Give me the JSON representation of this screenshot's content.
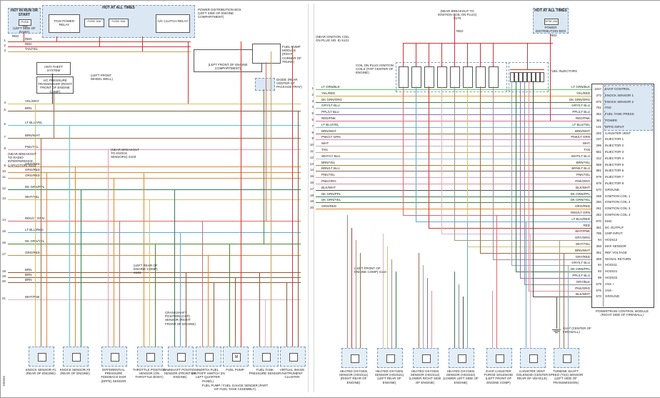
{
  "meta": {
    "doc_number": "100566"
  },
  "colors": {
    "page_bg": "#ffffff",
    "dashed_box_fill": "#dbe8f4",
    "dashed_box_border": "#7a9ab8",
    "line_default": "#333333",
    "red": "#cc3333"
  },
  "left": {
    "hot_run_box": {
      "header": "HOT IN RUN OR START",
      "fuse": "FUSE 20A",
      "caption": "(LEFT SIDE OF DASH)",
      "wire": "RED"
    },
    "power_box": {
      "header": "HOT AT ALL TIMES",
      "items": [
        "PCM POWER RELAY",
        "FUSE 30A",
        "FUSE 30A",
        "A/C CLUTCH RELAY"
      ],
      "caption": "POWER DISTRIBUTION BOX (LEFT SIDE OF ENGINE COMPARTMENT)"
    },
    "mid_boxes": [
      {
        "label": "ANTI-THEFT SYSTEM"
      },
      {
        "label": "A/C PRESSURE TRANSDUCER (RIGHT FRONT OF ENGINE COMP)"
      },
      {
        "label": "(LEFT FRONT OF ENGINE COMPARTMENT)"
      },
      {
        "label": "FUEL PUMP MODULE (RIGHT CORNER OF TRUNK)"
      },
      {
        "label": "DIODE (REAR CENTER OF PACKAGE TRAY)"
      }
    ],
    "annotations": [
      "(NEAR BREAKOUT TO RADIO INTERFERENCE CAPACITOR) S122",
      "(NEAR BREAKOUT TO KNOCK SENSORS) S103",
      "(LEFT REAR OF ENGINE COMP) S101",
      "(LEFT FRONT WHEEL WELL)",
      "CRANKSHAFT POSITION (CKP) SENSOR (RIGHT FRONT OF ENGINE)"
    ],
    "rows": [
      {
        "n": "1",
        "label": "RED",
        "color": "#cc3333"
      },
      {
        "n": "2",
        "label": "RED",
        "color": "#cc3333"
      },
      {
        "n": "3",
        "label": "TAN/YEL",
        "color": "#c8a050"
      },
      {
        "n": "4",
        "label": "YEL/WHT",
        "color": "#cfc26a"
      },
      {
        "n": "5",
        "label": "BRN",
        "color": "#8a5a33"
      },
      {
        "n": "6",
        "label": "LT BLU/YEL",
        "color": "#58c4d4"
      },
      {
        "n": "7",
        "label": "BRN/WHT",
        "color": "#9b6a42"
      },
      {
        "n": "8",
        "label": "PNK/YEL",
        "color": "#e49ab4"
      },
      {
        "n": "9",
        "label": "ORG/RED",
        "color": "#e0862e"
      },
      {
        "n": "10",
        "label": "ORG/RED",
        "color": "#e0862e"
      },
      {
        "n": "11",
        "label": "ORG/RED",
        "color": "#e0862e"
      },
      {
        "n": "12",
        "label": "DK GRN/PPL",
        "color": "#2e7d4f"
      },
      {
        "n": "13",
        "label": "WHT/YEL",
        "color": "#cfc26a"
      },
      {
        "n": "14",
        "label": "RED/LT GRN",
        "color": "#d96a6a"
      },
      {
        "n": "15",
        "label": "LT BLU/RED",
        "color": "#5fa8d8"
      },
      {
        "n": "16",
        "label": "DK GRN/YEL",
        "color": "#47862e"
      },
      {
        "n": "17",
        "label": "ORG/RED",
        "color": "#e0862e"
      },
      {
        "n": "18",
        "label": "BRN",
        "color": "#8a5a33"
      },
      {
        "n": "19",
        "label": "BRN",
        "color": "#8a5a33"
      },
      {
        "n": "20",
        "label": "BRN",
        "color": "#8a5a33"
      },
      {
        "n": "21",
        "label": "WHT/PNK",
        "color": "#dcb4c0"
      }
    ],
    "components": [
      {
        "label": "KNOCK SENSOR #1 (REAR OF ENGINE)"
      },
      {
        "label": "KNOCK SENSOR #2 (REAR OF ENGINE)"
      },
      {
        "label": "DIFFERENTIAL PRESSURE FEEDBACK EGR (DPFE) SENSOR"
      },
      {
        "label": "THROTTLE POSITION SENSOR (ON THROTTLE BODY)"
      },
      {
        "label": "CAMSHAFT POSITION SENSOR (FRONT OF ENGINE)"
      },
      {
        "label": "INERTIA FUEL SHUTOFF SWITCH (IN LEFT QUARTER PANEL)"
      },
      {
        "label": "FUEL PUMP",
        "glyph": "M"
      },
      {
        "label": "FUEL TANK PRESSURE SENSOR"
      },
      {
        "label": "VIRTUAL IMAGE INSTRUMENT CLUSTER"
      }
    ],
    "caption": "FUEL PUMP / FUEL GAUGE SENDER (PART OF FUEL TANK ASSEMBLY)"
  },
  "right": {
    "splice_top": "(NEAR BREAKOUT TO IGNITION COIL ON PLUG) S170",
    "splice_left": "(NEAR IGNITION COIL ON PLUG NO. 8) S121",
    "red_wire": "RED",
    "coils_caption": "COIL ON PLUG IGNITION COILS (TOP CENTER OF ENGINE)",
    "injectors_caption": "FUEL INJECTORS",
    "hot_box": {
      "header": "HOT AT ALL TIMES",
      "fuse": "EPM 15A",
      "caption": "POWER DISTRIBUTION BOX",
      "wire": "RED"
    },
    "ground": "G107 (CENTER OF FIREWALL)",
    "annotations": [
      "(LEFT FRONT OF ENGINE COMP) S110"
    ],
    "pcm": {
      "caption": "POWERTRAIN CONTROL MODULE (RIGHT SIDE OF FIREWALL)",
      "pins": [
        {
          "pin": "1047",
          "wire": "LT GRN/BLK",
          "fn": "EVAP CONTROL",
          "color": "#6abf69"
        },
        {
          "pin": "372",
          "wire": "YEL/RED",
          "fn": "KNOCK SENSOR 1",
          "color": "#d1a62e"
        },
        {
          "pin": "975",
          "wire": "DK GRN/ORG",
          "fn": "KNOCK SENSOR 2",
          "color": "#3f7d2e"
        },
        {
          "pin": "751",
          "wire": "GRY/LT BLU",
          "fn": "TSS",
          "color": "#8fa9b8"
        },
        {
          "pin": "362",
          "wire": "PPL/LT BLU",
          "fn": "FUEL TANK PRESS",
          "color": "#8a6ab8"
        },
        {
          "pin": "361",
          "wire": "RED/PNK",
          "fn": "POWER",
          "color": "#d8708a"
        },
        {
          "pin": "101",
          "wire": "LT BLU/YEL",
          "fn": "DPFE INPUT",
          "color": "#58c4d4"
        },
        {
          "pin": "202",
          "wire": "BRN/WHT",
          "fn": "CANISTER VENT",
          "color": "#9b6a42"
        },
        {
          "pin": "237",
          "wire": "PNK/LT GRN",
          "fn": "INJECTOR 1",
          "color": "#e08ab0"
        },
        {
          "pin": "296",
          "wire": "WHT",
          "fn": "INJECTOR 2",
          "color": "#b5b5b5"
        },
        {
          "pin": "561",
          "wire": "TAN",
          "fn": "INJECTOR 3",
          "color": "#c7a87a"
        },
        {
          "pin": "312",
          "wire": "WHT/LT BLU",
          "fn": "INJECTOR 4",
          "color": "#9cc4d4"
        },
        {
          "pin": "558",
          "wire": "BRN/YEL",
          "fn": "INJECTOR 5",
          "color": "#a8813c"
        },
        {
          "pin": "881",
          "wire": "BRN/LT BLU",
          "fn": "INJECTOR 6",
          "color": "#8a6a55"
        },
        {
          "pin": "879",
          "wire": "PNK/YEL",
          "fn": "INJECTOR 7",
          "color": "#e49ab4"
        },
        {
          "pin": "878",
          "wire": "PNK/ORG",
          "fn": "INJECTOR 8",
          "color": "#df8f9a"
        },
        {
          "pin": "570",
          "wire": "BLK/WHT",
          "fn": "GROUND",
          "color": "#4d4d4d"
        },
        {
          "pin": "259",
          "wire": "DK GRN/PPL",
          "fn": "IGNITION COIL 1",
          "color": "#2e7d4f"
        },
        {
          "pin": "260",
          "wire": "DK GRN/YEL",
          "fn": "IGNITION COIL 2",
          "color": "#47862e"
        },
        {
          "pin": "261",
          "wire": "ORG/RED",
          "fn": "IGNITION COIL 3",
          "color": "#e0862e"
        },
        {
          "pin": "262",
          "wire": "RED/LT GRN",
          "fn": "IGNITION COIL 4",
          "color": "#d96a6a"
        },
        {
          "pin": "870",
          "wire": "LT BLU/RED",
          "fn": "EMC",
          "color": "#5fa8d8"
        },
        {
          "pin": "361",
          "wire": "RED",
          "fn": "DC OUTPUT",
          "color": "#cc3333"
        },
        {
          "pin": "795",
          "wire": "WHT/PNK",
          "fn": "CMP INPUT",
          "color": "#dcb4c0"
        },
        {
          "pin": "94",
          "wire": "GRY/ORG",
          "fn": "HO2S12",
          "color": "#a6967e"
        },
        {
          "pin": "358",
          "wire": "WHT/YEL",
          "fn": "MAF SENSOR",
          "color": "#cfc26a"
        },
        {
          "pin": "351",
          "wire": "BRN/WHT",
          "fn": "REF VOLTAGE",
          "color": "#9b6a42"
        },
        {
          "pin": "359",
          "wire": "GRY/RED",
          "fn": "SIGNAL RETURN",
          "color": "#a28a92"
        },
        {
          "pin": "94",
          "wire": "GRY/LT BLU",
          "fn": "HO2S11",
          "color": "#8fa9b8"
        },
        {
          "pin": "93",
          "wire": "DK GRN/PPL",
          "fn": "HO2S21",
          "color": "#2e7d4f"
        },
        {
          "pin": "98",
          "wire": "PPL/LT BLU",
          "fn": "HO2S22",
          "color": "#8a6ab8"
        },
        {
          "pin": "679",
          "wire": "GRY/BLK",
          "fn": "VSS +",
          "color": "#85898f"
        },
        {
          "pin": "676",
          "wire": "PNK/ORG",
          "fn": "VSS -",
          "color": "#df8f9a"
        },
        {
          "pin": "570",
          "wire": "BLK/WHT",
          "fn": "GROUND",
          "color": "#4d4d4d"
        }
      ]
    },
    "components": [
      {
        "label": "HEATED OXYGEN SENSOR (HO2S11) (RIGHT REAR OF ENGINE)"
      },
      {
        "label": "HEATED OXYGEN SENSOR (HO2S21) (LEFT REAR OF ENGINE)"
      },
      {
        "label": "HEATED OXYGEN SENSOR (HO2S12) (LOWER RIGHT SIDE OF ENGINE)"
      },
      {
        "label": "HEATED OXYGEN SENSOR (HO2S22) (LOWER LEFT SIDE OF ENGINE)"
      },
      {
        "label": "EVAP CANISTER PURGE SOLENOID (LEFT FRONT OF ENGINE COMP)"
      },
      {
        "label": "CANISTER VENT SOLENOID (CENTER REAR OF VEHICLE)"
      },
      {
        "label": "TURBINE SHAFT SPEED (TSS) SENSOR (LEFT SIDE OF TRANSMISSION)"
      }
    ]
  }
}
